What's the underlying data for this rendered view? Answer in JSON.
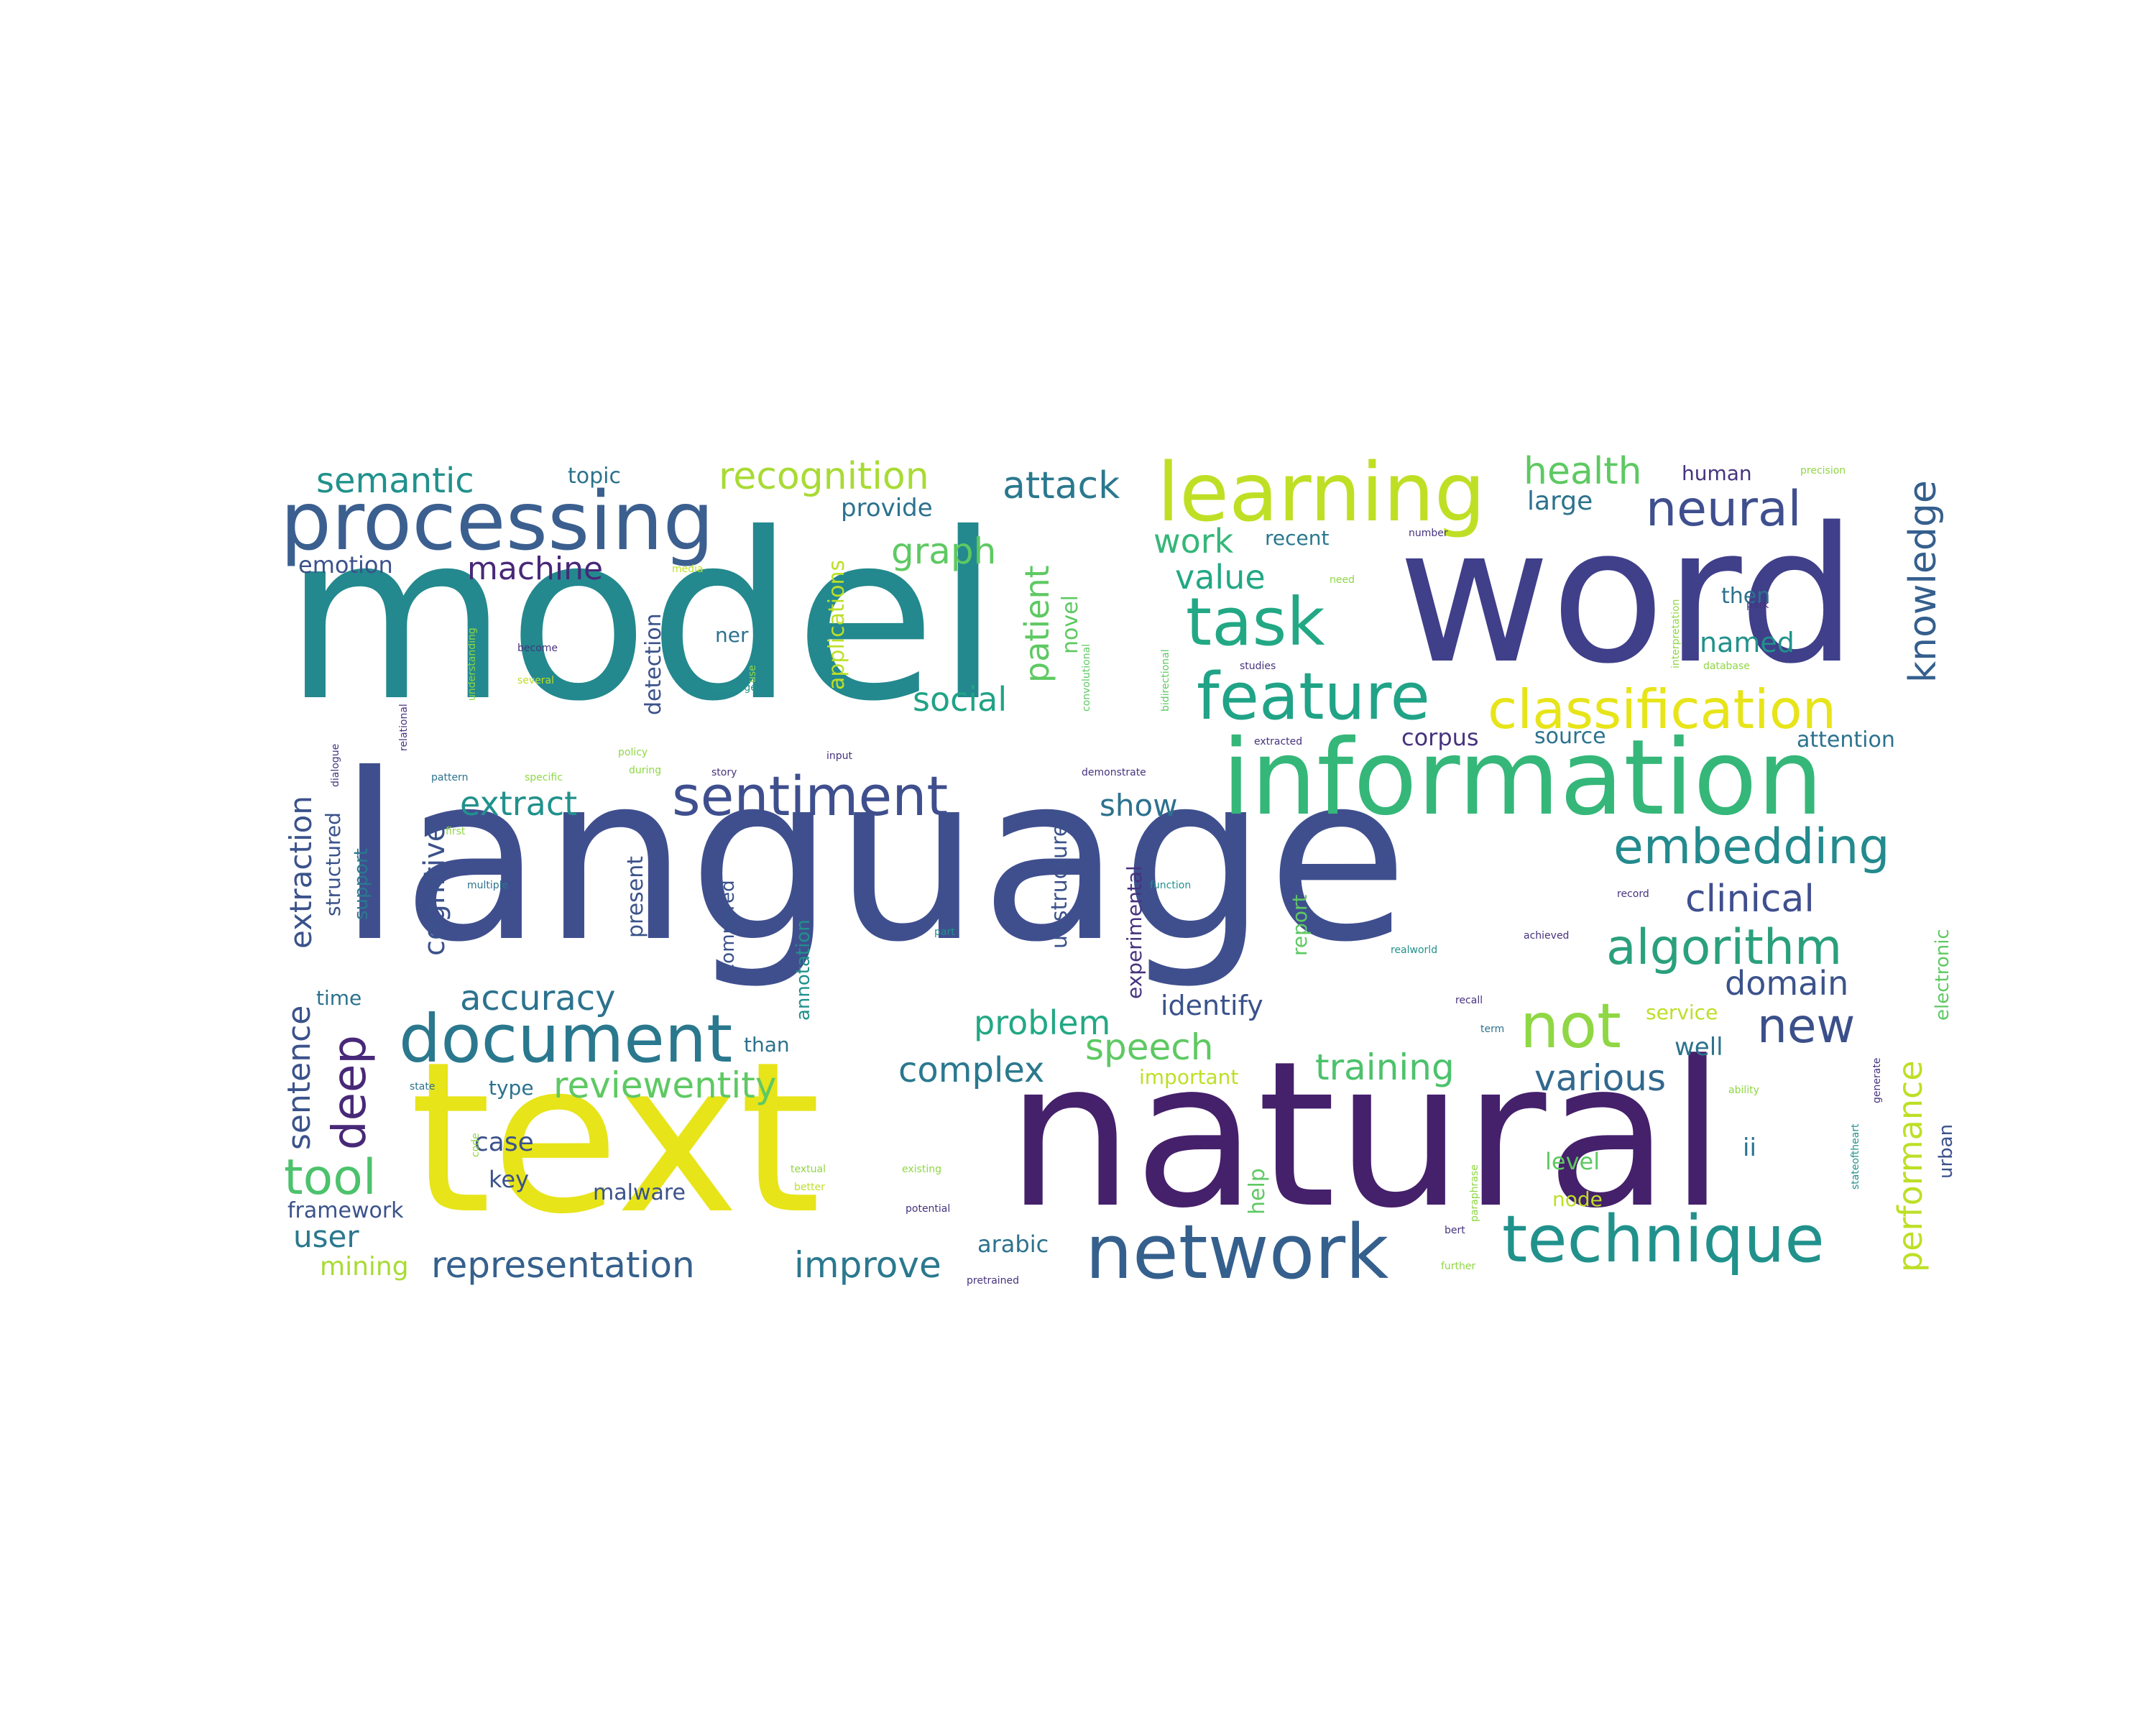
{
  "palette": {
    "purple": "#45206b",
    "indigo": "#3f4f8e",
    "blue": "#35608d",
    "teal": "#23898e",
    "green": "#35b779",
    "lime": "#8fd744",
    "yellow": "#e7e419",
    "background": "#ffffff"
  },
  "words": [
    {
      "text": "model",
      "color": "#23898e"
    },
    {
      "text": "language",
      "color": "#3f4f8e"
    },
    {
      "text": "text",
      "color": "#e7e419"
    },
    {
      "text": "natural",
      "color": "#45206b"
    },
    {
      "text": "word",
      "color": "#3f3f8a"
    },
    {
      "text": "information",
      "color": "#35b779"
    },
    {
      "text": "processing",
      "color": "#3b5f8f"
    },
    {
      "text": "learning",
      "color": "#bfdf25"
    },
    {
      "text": "network",
      "color": "#35608d"
    },
    {
      "text": "technique",
      "color": "#21918c"
    },
    {
      "text": "document",
      "color": "#2a788e"
    },
    {
      "text": "feature",
      "color": "#20a386"
    },
    {
      "text": "task",
      "color": "#22a884"
    },
    {
      "text": "classification",
      "color": "#e7e419"
    },
    {
      "text": "sentiment",
      "color": "#3f4f8e"
    },
    {
      "text": "embedding",
      "color": "#238a8d"
    },
    {
      "text": "algorithm",
      "color": "#2aa07c"
    },
    {
      "text": "not",
      "color": "#8fd744"
    },
    {
      "text": "neural",
      "color": "#3f4f8e"
    },
    {
      "text": "tool",
      "color": "#4cc26c"
    },
    {
      "text": "new",
      "color": "#3b4f8a"
    },
    {
      "text": "recognition",
      "color": "#a8db34"
    },
    {
      "text": "health",
      "color": "#5ec962"
    },
    {
      "text": "clinical",
      "color": "#3f4f8e"
    },
    {
      "text": "attack",
      "color": "#2a788e"
    },
    {
      "text": "knowledge",
      "color": "#355f8d"
    },
    {
      "text": "semantic",
      "color": "#21918c"
    },
    {
      "text": "deep",
      "color": "#482878"
    },
    {
      "text": "representation",
      "color": "#35608d"
    },
    {
      "text": "improve",
      "color": "#2a788e"
    },
    {
      "text": "reviewentity",
      "color": "#5ec962"
    },
    {
      "text": "training",
      "color": "#4cc26c"
    },
    {
      "text": "complex",
      "color": "#2a788e"
    },
    {
      "text": "speech",
      "color": "#5ec962"
    },
    {
      "text": "various",
      "color": "#31688e"
    },
    {
      "text": "accuracy",
      "color": "#2c728e"
    },
    {
      "text": "domain",
      "color": "#3b528b"
    },
    {
      "text": "problem",
      "color": "#22a884"
    },
    {
      "text": "graph",
      "color": "#5ec962"
    },
    {
      "text": "work",
      "color": "#35b779"
    },
    {
      "text": "value",
      "color": "#22a884"
    },
    {
      "text": "social",
      "color": "#20a386"
    },
    {
      "text": "extract",
      "color": "#21918c"
    },
    {
      "text": "show",
      "color": "#2c728e"
    },
    {
      "text": "machine",
      "color": "#482878"
    },
    {
      "text": "performance",
      "color": "#bddf26"
    },
    {
      "text": "sentence",
      "color": "#3b528b"
    },
    {
      "text": "extraction",
      "color": "#3b528b"
    },
    {
      "text": "cognitive",
      "color": "#3b528b"
    },
    {
      "text": "patient",
      "color": "#5ec962"
    },
    {
      "text": "user",
      "color": "#2a788e"
    },
    {
      "text": "framework",
      "color": "#3b528b"
    },
    {
      "text": "mining",
      "color": "#a8db34"
    },
    {
      "text": "identify",
      "color": "#3b528b"
    },
    {
      "text": "case",
      "color": "#3b528b"
    },
    {
      "text": "key",
      "color": "#3b528b"
    },
    {
      "text": "malware",
      "color": "#3b528b"
    },
    {
      "text": "arabic",
      "color": "#2c728e"
    },
    {
      "text": "named",
      "color": "#21918c"
    },
    {
      "text": "large",
      "color": "#2c728e"
    },
    {
      "text": "provide",
      "color": "#2c728e"
    },
    {
      "text": "topic",
      "color": "#2c728e"
    },
    {
      "text": "emotion",
      "color": "#3b528b"
    },
    {
      "text": "human",
      "color": "#46337e"
    },
    {
      "text": "recent",
      "color": "#2a788e"
    },
    {
      "text": "then",
      "color": "#2c728e"
    },
    {
      "text": "attention",
      "color": "#2c728e"
    },
    {
      "text": "source",
      "color": "#2c728e"
    },
    {
      "text": "corpus",
      "color": "#46337e"
    },
    {
      "text": "well",
      "color": "#2c728e"
    },
    {
      "text": "level",
      "color": "#5ec962"
    },
    {
      "text": "node",
      "color": "#bddf26"
    },
    {
      "text": "service",
      "color": "#bddf26"
    },
    {
      "text": "important",
      "color": "#bddf26"
    },
    {
      "text": "time",
      "color": "#2c728e"
    },
    {
      "text": "type",
      "color": "#2c728e"
    },
    {
      "text": "than",
      "color": "#2c728e"
    },
    {
      "text": "ner",
      "color": "#2c728e"
    },
    {
      "text": "help",
      "color": "#5ec962"
    },
    {
      "text": "novel",
      "color": "#5ec962"
    },
    {
      "text": "detection",
      "color": "#3b528b"
    },
    {
      "text": "applications",
      "color": "#bddf26"
    },
    {
      "text": "annotation",
      "color": "#21918c"
    },
    {
      "text": "compared",
      "color": "#3b528b"
    },
    {
      "text": "present",
      "color": "#3b528b"
    },
    {
      "text": "unstructured",
      "color": "#3b528b"
    },
    {
      "text": "experimental",
      "color": "#46337e"
    },
    {
      "text": "report",
      "color": "#5ec962"
    },
    {
      "text": "electronic",
      "color": "#5ec962"
    },
    {
      "text": "structured",
      "color": "#3b528b"
    },
    {
      "text": "support",
      "color": "#2a788e"
    },
    {
      "text": "urban",
      "color": "#3b528b"
    },
    {
      "text": "precision",
      "color": "#8fd744"
    },
    {
      "text": "number",
      "color": "#46337e"
    },
    {
      "text": "need",
      "color": "#8fd744"
    },
    {
      "text": "become",
      "color": "#46337e"
    },
    {
      "text": "several",
      "color": "#bddf26"
    },
    {
      "text": "message",
      "color": "#21918c"
    },
    {
      "text": "pattern",
      "color": "#2c728e"
    },
    {
      "text": "specific",
      "color": "#8fd744"
    },
    {
      "text": "during",
      "color": "#8fd744"
    },
    {
      "text": "story",
      "color": "#46337e"
    },
    {
      "text": "policy",
      "color": "#8fd744"
    },
    {
      "text": "input",
      "color": "#46337e"
    },
    {
      "text": "demonstrate",
      "color": "#46337e"
    },
    {
      "text": "function",
      "color": "#21918c"
    },
    {
      "text": "record",
      "color": "#46337e"
    },
    {
      "text": "achieved",
      "color": "#46337e"
    },
    {
      "text": "multiple",
      "color": "#2c728e"
    },
    {
      "text": "first",
      "color": "#8fd744"
    },
    {
      "text": "part",
      "color": "#21918c"
    },
    {
      "text": "realworld",
      "color": "#21918c"
    },
    {
      "text": "recall",
      "color": "#46337e"
    },
    {
      "text": "term",
      "color": "#2c728e"
    },
    {
      "text": "state",
      "color": "#2c728e"
    },
    {
      "text": "ability",
      "color": "#8fd744"
    },
    {
      "text": "textual",
      "color": "#8fd744"
    },
    {
      "text": "existing",
      "color": "#8fd744"
    },
    {
      "text": "better",
      "color": "#bddf26"
    },
    {
      "text": "potential",
      "color": "#46337e"
    },
    {
      "text": "bert",
      "color": "#46337e"
    },
    {
      "text": "further",
      "color": "#8fd744"
    },
    {
      "text": "pretrained",
      "color": "#46337e"
    },
    {
      "text": "extracted",
      "color": "#46337e"
    },
    {
      "text": "studies",
      "color": "#46337e"
    },
    {
      "text": "database",
      "color": "#8fd744"
    },
    {
      "text": "media",
      "color": "#bddf26"
    },
    {
      "text": "use",
      "color": "#8fd744"
    },
    {
      "text": "paraphrase",
      "color": "#8fd744"
    },
    {
      "text": "bidirectional",
      "color": "#5ec962"
    },
    {
      "text": "convolutional",
      "color": "#5ec962"
    },
    {
      "text": "interpretation",
      "color": "#8fd744"
    },
    {
      "text": "park",
      "color": "#46337e"
    },
    {
      "text": "understanding",
      "color": "#8fd744"
    },
    {
      "text": "relational",
      "color": "#46337e"
    },
    {
      "text": "dialogue",
      "color": "#46337e"
    },
    {
      "text": "code",
      "color": "#8fd744"
    },
    {
      "text": "stateoftheart",
      "color": "#21918c"
    },
    {
      "text": "generate",
      "color": "#46337e"
    },
    {
      "text": "ii",
      "color": "#2c728e"
    }
  ]
}
